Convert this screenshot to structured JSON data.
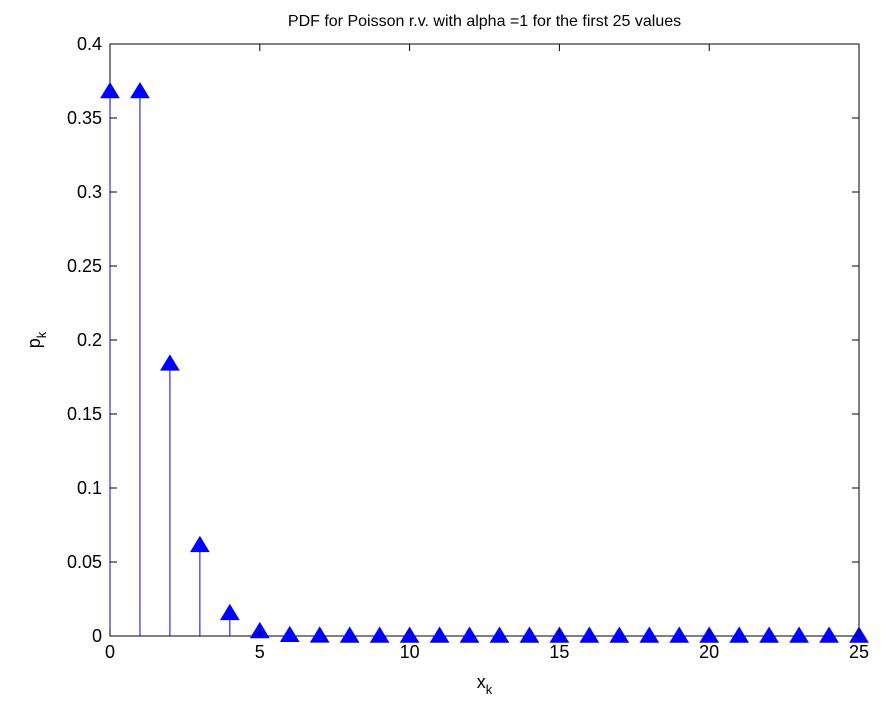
{
  "chart_data": {
    "type": "stem",
    "title": "PDF for Poisson r.v. with alpha =1 for the first 25 values",
    "xlabel": {
      "base": "x",
      "subscript": "k"
    },
    "ylabel": {
      "base": "p",
      "subscript": "k"
    },
    "xlim": [
      0,
      25
    ],
    "ylim": [
      0,
      0.4
    ],
    "xticks": [
      0,
      5,
      10,
      15,
      20,
      25
    ],
    "xtick_labels": [
      "0",
      "5",
      "10",
      "15",
      "20",
      "25"
    ],
    "yticks": [
      0,
      0.05,
      0.1,
      0.15,
      0.2,
      0.25,
      0.3,
      0.35,
      0.4
    ],
    "ytick_labels": [
      "0",
      "0.05",
      "0.1",
      "0.15",
      "0.2",
      "0.25",
      "0.3",
      "0.35",
      "0.4"
    ],
    "grid": false,
    "marker": "triangle-up",
    "series": [
      {
        "color": "#0000ff",
        "x": [
          0,
          1,
          2,
          3,
          4,
          5,
          6,
          7,
          8,
          9,
          10,
          11,
          12,
          13,
          14,
          15,
          16,
          17,
          18,
          19,
          20,
          21,
          22,
          23,
          24,
          25
        ],
        "values": [
          0.3679,
          0.3679,
          0.1839,
          0.0613,
          0.0153,
          0.0031,
          0.0005,
          0.0001,
          0.0,
          0.0,
          0.0,
          0.0,
          0.0,
          0.0,
          0.0,
          0.0,
          0.0,
          0.0,
          0.0,
          0.0,
          0.0,
          0.0,
          0.0,
          0.0,
          0.0,
          0.0
        ]
      }
    ]
  }
}
